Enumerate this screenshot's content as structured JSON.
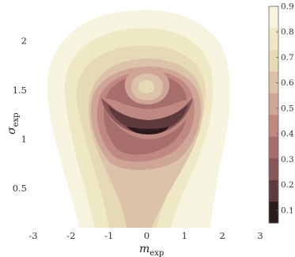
{
  "chart_data": {
    "type": "filled-contour",
    "xlabel": {
      "symbol": "m",
      "subscript": "exp"
    },
    "ylabel": {
      "symbol": "σ",
      "subscript": "exp"
    },
    "xlim": [
      -3,
      3
    ],
    "ylim": [
      0.1,
      2.35
    ],
    "x_ticks": [
      "-3",
      "-2",
      "-1",
      "0",
      "1",
      "2",
      "3"
    ],
    "y_ticks": [
      "0.5",
      "1",
      "1.5",
      "2"
    ],
    "colorbar": {
      "range": [
        0.05,
        0.9
      ],
      "ticks": [
        "0.1",
        "0.2",
        "0.3",
        "0.4",
        "0.5",
        "0.6",
        "0.7",
        "0.8",
        "0.9"
      ],
      "colors": [
        "#2b1a1c",
        "#5e3a3d",
        "#8a5758",
        "#a86e6b",
        "#bf8880",
        "#cfa597",
        "#dbc2a8",
        "#e6d9b6",
        "#eee8c4",
        "#f6f3de"
      ]
    },
    "contour_levels": [
      0.85,
      0.75,
      0.65,
      0.55,
      0.45,
      0.35,
      0.25,
      0.15,
      0.05
    ],
    "features": {
      "minimum": {
        "m": 0,
        "sigma": 1.07
      },
      "local_peak": {
        "m": 0,
        "sigma": 1.48
      },
      "grid": false
    }
  }
}
